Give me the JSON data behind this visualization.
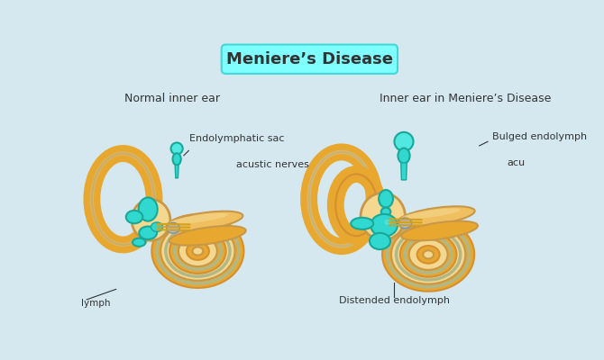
{
  "title": "Meniere’s Disease",
  "title_box_color": "#7FFFFF",
  "title_box_edge": "#40D8D8",
  "background_color": "#D5E8F0",
  "left_label": "Normal inner ear",
  "right_label": "Inner ear in Meniere’s Disease",
  "label_endolymphatic": "Endolymphatic sac",
  "label_acustic": "acustic nerves",
  "label_lymph": "lymph",
  "label_bulged": "Bulged endolymph",
  "label_acu": "acu",
  "label_distended": "Distended endolymph",
  "ear_gold": "#E8A830",
  "ear_gold2": "#D49030",
  "ear_gold_light": "#F0C060",
  "ear_gold_pale": "#F5D890",
  "ear_beige": "#E8C87A",
  "ear_tan": "#C89848",
  "ear_sage": "#B0B888",
  "ear_sage2": "#C8C8A0",
  "ear_shadow": "#A89060",
  "cyan": "#30D8D0",
  "cyan2": "#50E8E0",
  "cyan_dark": "#18A898",
  "nerve_yellow": "#D4A020",
  "nerve_gray": "#B0B8C0",
  "text_color": "#333333"
}
